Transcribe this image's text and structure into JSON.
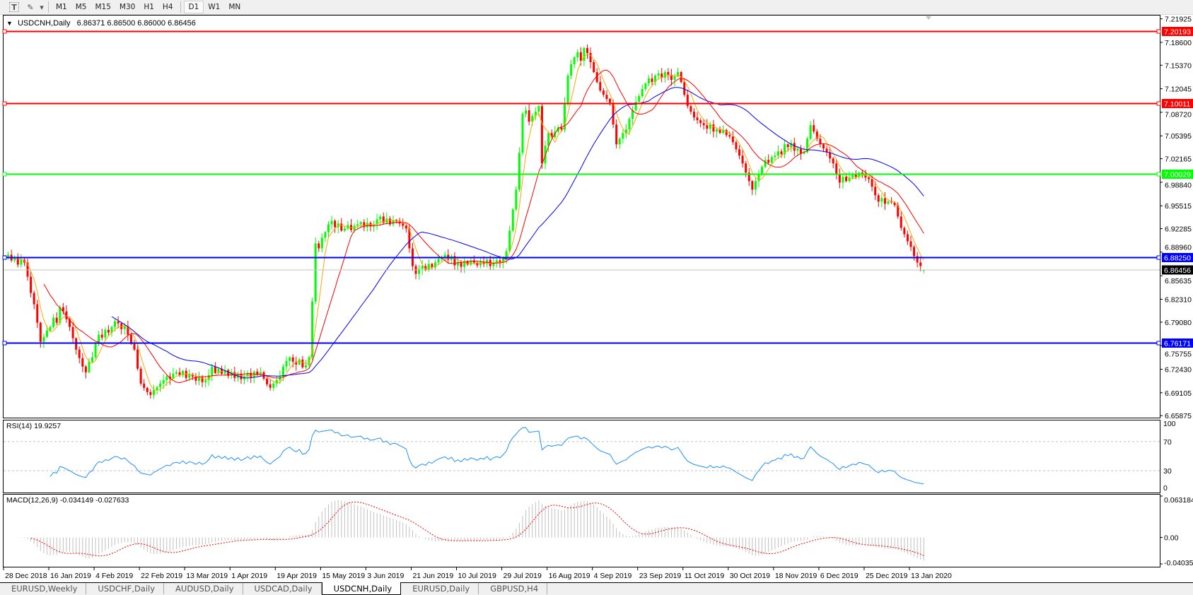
{
  "toolbar": {
    "tools": [
      {
        "name": "text-tool-icon",
        "glyph": "T"
      },
      {
        "name": "drawing-tools-icon",
        "glyph": "✎"
      },
      {
        "name": "dropdown-arrow-icon",
        "glyph": "▾"
      }
    ],
    "timeframes": [
      "M1",
      "M5",
      "M15",
      "M30",
      "H1",
      "H4",
      "D1",
      "W1",
      "MN"
    ],
    "active_timeframe": "D1"
  },
  "chart": {
    "header_arrow": "▼",
    "symbol": "USDCNH,Daily",
    "ohlc": "6.86371 6.86500 6.86000 6.86456"
  },
  "chart_data": {
    "type": "candlestick",
    "symbol": "USDCNH",
    "timeframe": "Daily",
    "last_bar": {
      "open": 6.86371,
      "high": 6.865,
      "low": 6.86,
      "close": 6.86456
    },
    "closes": [
      6.881,
      6.886,
      6.878,
      6.883,
      6.872,
      6.879,
      6.875,
      6.855,
      6.832,
      6.816,
      6.79,
      6.763,
      6.77,
      6.779,
      6.784,
      6.797,
      6.79,
      6.812,
      6.806,
      6.795,
      6.784,
      6.768,
      6.752,
      6.74,
      6.728,
      6.72,
      6.735,
      6.741,
      6.76,
      6.773,
      6.769,
      6.78,
      6.776,
      6.784,
      6.792,
      6.789,
      6.781,
      6.785,
      6.773,
      6.76,
      6.752,
      6.725,
      6.704,
      6.698,
      6.692,
      6.688,
      6.695,
      6.699,
      6.704,
      6.709,
      6.714,
      6.711,
      6.718,
      6.72,
      6.716,
      6.722,
      6.712,
      6.717,
      6.714,
      6.708,
      6.713,
      6.706,
      6.709,
      6.716,
      6.728,
      6.719,
      6.725,
      6.718,
      6.723,
      6.715,
      6.72,
      6.712,
      6.718,
      6.71,
      6.714,
      6.719,
      6.713,
      6.721,
      6.716,
      6.72,
      6.711,
      6.703,
      6.698,
      6.704,
      6.709,
      6.714,
      6.728,
      6.736,
      6.741,
      6.735,
      6.731,
      6.738,
      6.727,
      6.73,
      6.741,
      6.82,
      6.902,
      6.895,
      6.91,
      6.918,
      6.929,
      6.934,
      6.925,
      6.93,
      6.92,
      6.923,
      6.928,
      6.921,
      6.927,
      6.929,
      6.932,
      6.925,
      6.931,
      6.926,
      6.929,
      6.936,
      6.94,
      6.931,
      6.937,
      6.929,
      6.935,
      6.934,
      6.93,
      6.927,
      6.923,
      6.895,
      6.87,
      6.859,
      6.866,
      6.87,
      6.864,
      6.873,
      6.868,
      6.875,
      6.88,
      6.883,
      6.886,
      6.879,
      6.884,
      6.871,
      6.875,
      6.869,
      6.877,
      6.872,
      6.878,
      6.875,
      6.871,
      6.876,
      6.873,
      6.879,
      6.87,
      6.875,
      6.878,
      6.875,
      6.882,
      6.891,
      6.92,
      6.95,
      6.978,
      7.03,
      7.085,
      7.09,
      7.074,
      7.082,
      7.088,
      7.096,
      7.015,
      7.04,
      7.058,
      7.052,
      7.06,
      7.066,
      7.063,
      7.1,
      7.139,
      7.155,
      7.165,
      7.172,
      7.16,
      7.178,
      7.171,
      7.158,
      7.144,
      7.13,
      7.118,
      7.112,
      7.106,
      7.101,
      7.07,
      7.042,
      7.05,
      7.058,
      7.063,
      7.078,
      7.09,
      7.102,
      7.11,
      7.12,
      7.128,
      7.135,
      7.13,
      7.139,
      7.142,
      7.136,
      7.144,
      7.14,
      7.133,
      7.138,
      7.144,
      7.13,
      7.112,
      7.096,
      7.088,
      7.08,
      7.076,
      7.072,
      7.069,
      7.064,
      7.07,
      7.06,
      7.063,
      7.058,
      7.062,
      7.055,
      7.053,
      7.045,
      7.035,
      7.026,
      7.015,
      7.002,
      6.99,
      6.978,
      6.99,
      6.999,
      7.01,
      7.02,
      7.016,
      7.024,
      7.026,
      7.032,
      7.028,
      7.042,
      7.038,
      7.044,
      7.033,
      7.036,
      7.029,
      7.031,
      7.05,
      7.069,
      7.06,
      7.05,
      7.042,
      7.036,
      7.031,
      7.022,
      7.015,
      7.0,
      6.988,
      6.996,
      6.99,
      6.995,
      6.999,
      6.996,
      7.002,
      6.999,
      6.995,
      6.993,
      6.982,
      6.97,
      6.961,
      6.966,
      6.958,
      6.961,
      6.96,
      6.956,
      6.94,
      6.924,
      6.915,
      6.905,
      6.897,
      6.884,
      6.875,
      6.87,
      6.86456
    ],
    "price_axis_ticks": [
      "7.21925",
      "7.18600",
      "7.15370",
      "7.12045",
      "7.08720",
      "7.05395",
      "7.02165",
      "6.98840",
      "6.95515",
      "6.92285",
      "6.88960",
      "6.85635",
      "6.82310",
      "6.79080",
      "6.75755",
      "6.72430",
      "6.69105",
      "6.65875"
    ],
    "date_labels": [
      "28 Dec 2018",
      "16 Jan 2019",
      "4 Feb 2019",
      "22 Feb 2019",
      "13 Mar 2019",
      "1 Apr 2019",
      "19 Apr 2019",
      "15 May 2019",
      "3 Jun 2019",
      "21 Jun 2019",
      "10 Jul 2019",
      "29 Jul 2019",
      "16 Aug 2019",
      "4 Sep 2019",
      "23 Sep 2019",
      "11 Oct 2019",
      "30 Oct 2019",
      "18 Nov 2019",
      "6 Dec 2019",
      "25 Dec 2019",
      "13 Jan 2020"
    ],
    "horizontal_lines": [
      {
        "price": "7.20193",
        "color": "#ff0000"
      },
      {
        "price": "7.10011",
        "color": "#ff0000"
      },
      {
        "price": "7.00029",
        "color": "#00ff00"
      },
      {
        "price": "6.88250",
        "color": "#0000ff"
      },
      {
        "price": "6.76171",
        "color": "#0000ff"
      }
    ],
    "current_price": "6.86456",
    "colors": {
      "bull": "#00ff00",
      "bear": "#ff0000",
      "ma_fast": "#ffa500",
      "ma_mid": "#ff0000",
      "ma_slow": "#0000ff",
      "rsi": "#1e90ff",
      "macd_hist": "#c0c0c0",
      "macd_signal": "#ff0000"
    },
    "rsi": {
      "label": "RSI(14) 19.9257",
      "levels": [
        70,
        30
      ],
      "ticks": [
        "100",
        "70",
        "30",
        "0"
      ]
    },
    "macd": {
      "label": "MACD(12,26,9) -0.034149 -0.027633",
      "ticks": [
        "0.063184",
        "0.00",
        "-0.040355"
      ],
      "range": [
        -0.040355,
        0.063184
      ]
    }
  },
  "tabs": [
    {
      "label": "EURUSD,Weekly",
      "active": false
    },
    {
      "label": "USDCHF,Daily",
      "active": false
    },
    {
      "label": "AUDUSD,Daily",
      "active": false
    },
    {
      "label": "USDCAD,Daily",
      "active": false
    },
    {
      "label": "USDCNH,Daily",
      "active": true
    },
    {
      "label": "EURUSD,Daily",
      "active": false
    },
    {
      "label": "GBPUSD,H4",
      "active": false
    }
  ]
}
